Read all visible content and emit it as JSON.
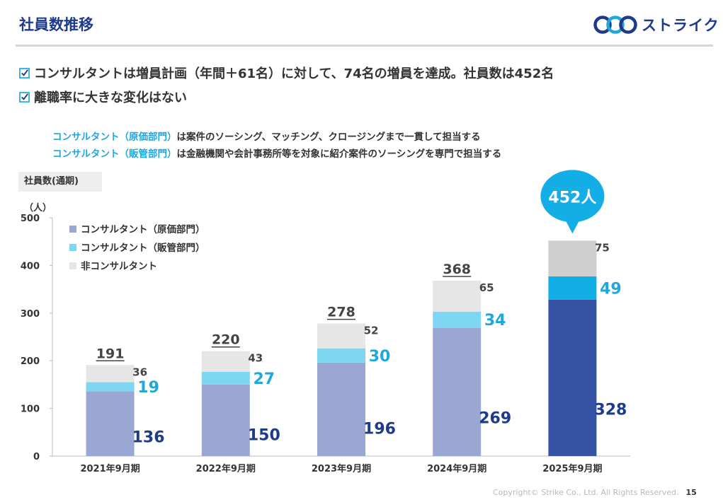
{
  "header": {
    "title": "社員数推移",
    "logo_text": "ストライク"
  },
  "bullets": [
    "コンサルタントは増員計画（年間＋61名）に対して、74名の増員を達成。社員数は452名",
    "離職率に大きな変化はない"
  ],
  "notes": [
    {
      "highlight": "コンサルタント（原価部門）",
      "text": "は案件のソーシング、マッチング、クロージングまで一貫して担当する"
    },
    {
      "highlight": "コンサルタント（販管部門）",
      "text": "は金融機関や会計事務所等を対象に紹介案件のソーシングを専門で担当する"
    }
  ],
  "chart_label": "社員数(通期)",
  "callout": "452人",
  "footer": {
    "copyright": "Copyright© Strike Co., Ltd. All Rights Reserved.",
    "page": "15"
  },
  "chart_data": {
    "type": "bar",
    "stacked": true,
    "yunit": "（人）",
    "ylim": [
      0,
      500
    ],
    "yticks": [
      0,
      100,
      200,
      300,
      400,
      500
    ],
    "categories": [
      "2021年9月期",
      "2022年9月期",
      "2023年9月期",
      "2024年9月期",
      "2025年9月期"
    ],
    "series": [
      {
        "name": "コンサルタント（原価部門）",
        "values": [
          136,
          150,
          196,
          269,
          328
        ],
        "color": "#9aa7d2",
        "highlight_color": "#3552a3",
        "label_color": "#1e3a8a"
      },
      {
        "name": "コンサルタント（販管部門）",
        "values": [
          19,
          27,
          30,
          34,
          49
        ],
        "color": "#7fd6f2",
        "highlight_color": "#14aee6",
        "label_color": "#1ea8df"
      },
      {
        "name": "非コンサルタント",
        "values": [
          36,
          43,
          52,
          65,
          75
        ],
        "color": "#e6e6e6",
        "highlight_color": "#cfcfcf",
        "label_color": "#444444"
      }
    ],
    "totals": [
      191,
      220,
      278,
      368,
      452
    ],
    "legend_position": "top-left",
    "grid": false
  }
}
